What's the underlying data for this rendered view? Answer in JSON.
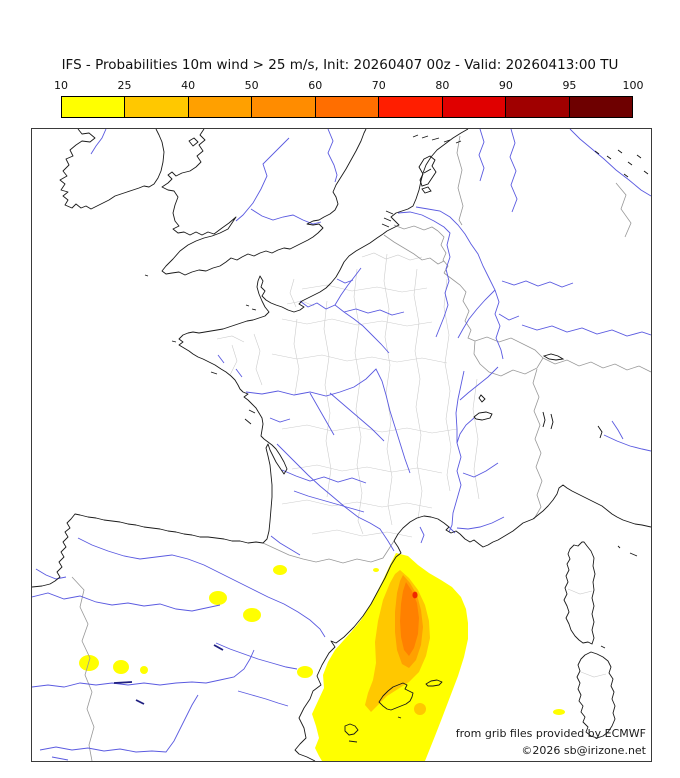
{
  "title": "IFS - Probabilities 10m wind > 25 m/s, Init: 20260407 00z - Valid: 20260413:00 TU",
  "colorbar": {
    "ticks": [
      "10",
      "25",
      "40",
      "50",
      "60",
      "70",
      "80",
      "90",
      "95",
      "100"
    ],
    "colors": [
      "#FFFF00",
      "#FFC800",
      "#FFA000",
      "#FF8C00",
      "#FF6E00",
      "#FF1E00",
      "#E00000",
      "#A00000",
      "#6E0000"
    ]
  },
  "map": {
    "attribution_line1": "from grib files provided by ECMWF",
    "attribution_line2": "©2026 sb@irizone.net",
    "coastline_color": "#1a1a1a",
    "river_color": "#5a5ae0",
    "border_color": "#989898",
    "department_color": "#cccccc",
    "reservoir_color": "#202080",
    "contour_levels": [
      {
        "threshold": 10,
        "color": "#FFFF00"
      },
      {
        "threshold": 25,
        "color": "#FFC800"
      },
      {
        "threshold": 40,
        "color": "#FFA000"
      },
      {
        "threshold": 50,
        "color": "#FF8000"
      },
      {
        "threshold": 70,
        "color": "#F02800"
      }
    ]
  }
}
